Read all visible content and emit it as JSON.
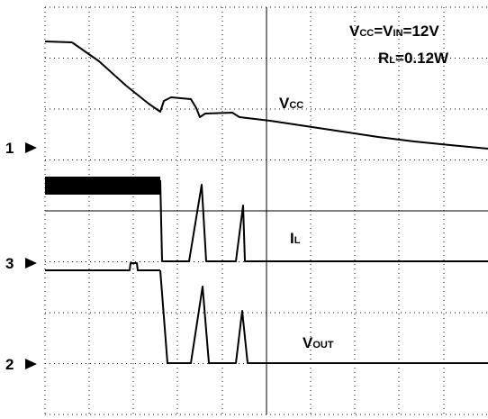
{
  "annotations": {
    "supply": [
      "V",
      "CC",
      "=V",
      "IN",
      "=12V"
    ],
    "load": [
      "R",
      "L",
      "=0.12W"
    ]
  },
  "traces": {
    "vcc": [
      "V",
      "CC"
    ],
    "il": [
      "I",
      "L"
    ],
    "vout": [
      "V",
      "OUT"
    ]
  },
  "channels": [
    "1",
    "3",
    "2"
  ]
}
